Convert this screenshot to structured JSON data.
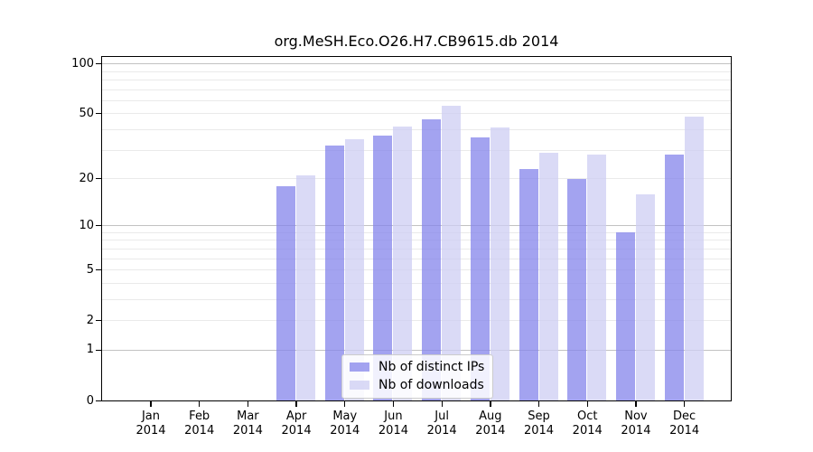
{
  "chart_data": {
    "type": "bar",
    "title": "org.MeSH.Eco.O26.H7.CB9615.db 2014",
    "year": "2014",
    "categories": [
      "Jan",
      "Feb",
      "Mar",
      "Apr",
      "May",
      "Jun",
      "Jul",
      "Aug",
      "Sep",
      "Oct",
      "Nov",
      "Dec"
    ],
    "series": [
      {
        "name": "Nb of distinct IPs",
        "color": "#8484eb",
        "opacity": 0.75,
        "values": [
          0,
          0,
          0,
          18,
          32,
          37,
          46,
          36,
          23,
          20,
          9,
          28
        ]
      },
      {
        "name": "Nb of downloads",
        "color": "#cecef3",
        "opacity": 0.75,
        "values": [
          0,
          0,
          0,
          21,
          35,
          42,
          56,
          41,
          29,
          28,
          16,
          48
        ]
      }
    ],
    "xlabel": "",
    "ylabel": "",
    "yscale": "log1p",
    "ylim": [
      0,
      112
    ],
    "ytick_labels": [
      0,
      1,
      2,
      5,
      10,
      20,
      50,
      100
    ],
    "gridlines_major": [
      1,
      10,
      100
    ],
    "gridlines_minor": [
      2,
      3,
      4,
      5,
      6,
      7,
      8,
      9,
      20,
      30,
      40,
      50,
      60,
      70,
      80,
      90
    ],
    "grid": true,
    "legend_position": "bottom-center"
  },
  "colors": {
    "background": "#ffffff",
    "axis": "#000000",
    "grid_major": "#c2c2c2",
    "grid_minor": "#eaeaea",
    "legend_border": "#cccccc",
    "tick_label": "#000000"
  }
}
